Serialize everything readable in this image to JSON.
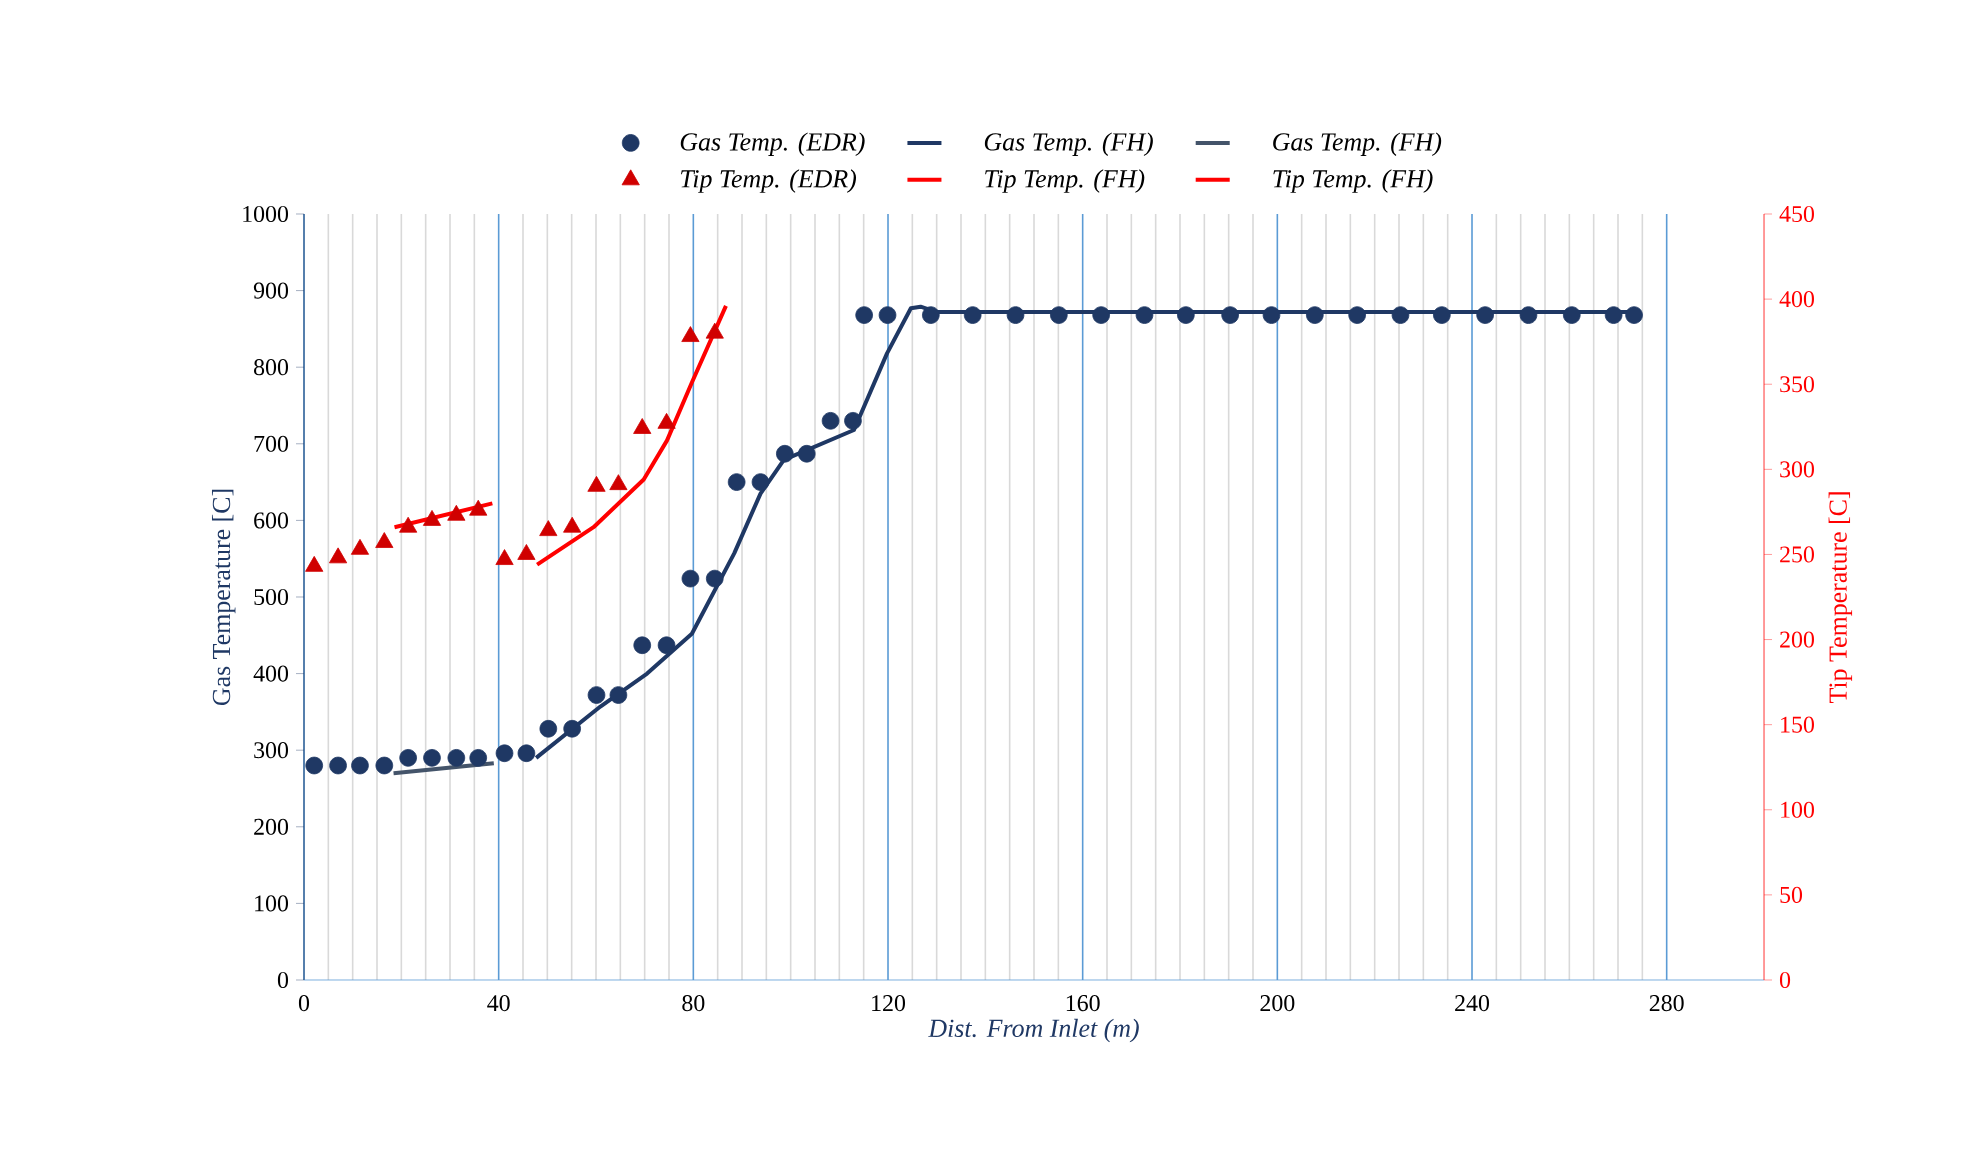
{
  "chart_data": {
    "type": "line",
    "xlabel": "Dist. From Inlet (m)",
    "ylabel": "Gas Temperature [C]",
    "y2label": "Tip Temperature [C]",
    "xlim": [
      0,
      300
    ],
    "xticks": [
      0,
      40,
      80,
      120,
      160,
      200,
      240,
      280
    ],
    "ylim": [
      0,
      1000
    ],
    "yticks": [
      0,
      100,
      200,
      300,
      400,
      500,
      600,
      700,
      800,
      900,
      1000
    ],
    "y2lim": [
      0,
      450
    ],
    "y2ticks": [
      0,
      50,
      100,
      150,
      200,
      250,
      300,
      350,
      400,
      450
    ],
    "grid": "x",
    "legend": "top",
    "series": [
      {
        "name": "Gas Temp. (EDR)",
        "type": "scatter",
        "marker": "circle",
        "color": "#1f3864",
        "axis": "y",
        "x": [
          2.1,
          7.0,
          11.5,
          16.5,
          21.4,
          26.3,
          31.3,
          35.8,
          41.2,
          45.7,
          50.2,
          55.1,
          60.1,
          64.6,
          69.5,
          74.5,
          79.4,
          84.4,
          88.9,
          93.8,
          98.8,
          103.3,
          108.2,
          112.8,
          115.1,
          119.9,
          128.8,
          137.4,
          146.2,
          155.1,
          163.8,
          172.7,
          181.2,
          190.3,
          198.8,
          207.7,
          216.4,
          225.3,
          233.8,
          242.7,
          251.6,
          260.5,
          269.1,
          273.3
        ],
        "values": [
          280,
          280,
          280,
          280,
          290,
          290,
          290,
          290,
          296,
          296,
          328,
          328,
          372,
          372,
          437,
          437,
          524,
          524,
          650,
          650,
          687,
          687,
          730,
          730,
          868,
          868,
          868,
          868,
          868,
          868,
          868,
          868,
          868,
          868,
          868,
          868,
          868,
          868,
          868,
          868,
          868,
          868,
          868,
          868
        ]
      },
      {
        "name": "Gas Temp. (FH)",
        "marker": "none",
        "line_style": "solid",
        "color": "#1f3864",
        "axis": "y",
        "x": [
          47.7,
          60.9,
          70.5,
          79.7,
          88.4,
          93.8,
          98.6,
          113,
          119.8,
          124.7,
          126.7,
          130,
          273.3
        ],
        "values": [
          290,
          357,
          400,
          452,
          557,
          635,
          679,
          718,
          818,
          877,
          879,
          872,
          872
        ]
      },
      {
        "name": "Gas Temp. (FH)",
        "marker": "none",
        "line_style": "solid",
        "color": "#44546a",
        "axis": "y",
        "x": [
          18.4,
          39
        ],
        "values": [
          270,
          283
        ]
      },
      {
        "name": "Tip Temp. (EDR)",
        "type": "scatter",
        "marker": "triangle",
        "color": "#d00000",
        "axis": "y2",
        "x": [
          2.1,
          7.0,
          11.5,
          16.5,
          21.4,
          26.3,
          31.3,
          35.8,
          41.2,
          45.7,
          50.2,
          55.1,
          60.1,
          64.6,
          69.5,
          74.5,
          79.4,
          84.4
        ],
        "values": [
          243,
          248,
          253,
          257,
          266,
          270,
          273,
          276,
          247,
          250,
          264,
          266,
          290,
          291,
          324,
          327,
          378,
          380
        ]
      },
      {
        "name": "Tip Temp. (FH)",
        "marker": "none",
        "line_style": "solid",
        "color": "#ff0000",
        "axis": "y2",
        "x": [
          47.9,
          59.5,
          69.8,
          74.6,
          79.7,
          86.7
        ],
        "values": [
          244,
          266,
          294,
          317,
          351,
          396
        ]
      },
      {
        "name": "Tip Temp. (FH)",
        "marker": "none",
        "line_style": "solid",
        "color": "#ff0000",
        "axis": "y2",
        "x": [
          18.6,
          38.7
        ],
        "values": [
          266,
          280
        ]
      }
    ]
  }
}
